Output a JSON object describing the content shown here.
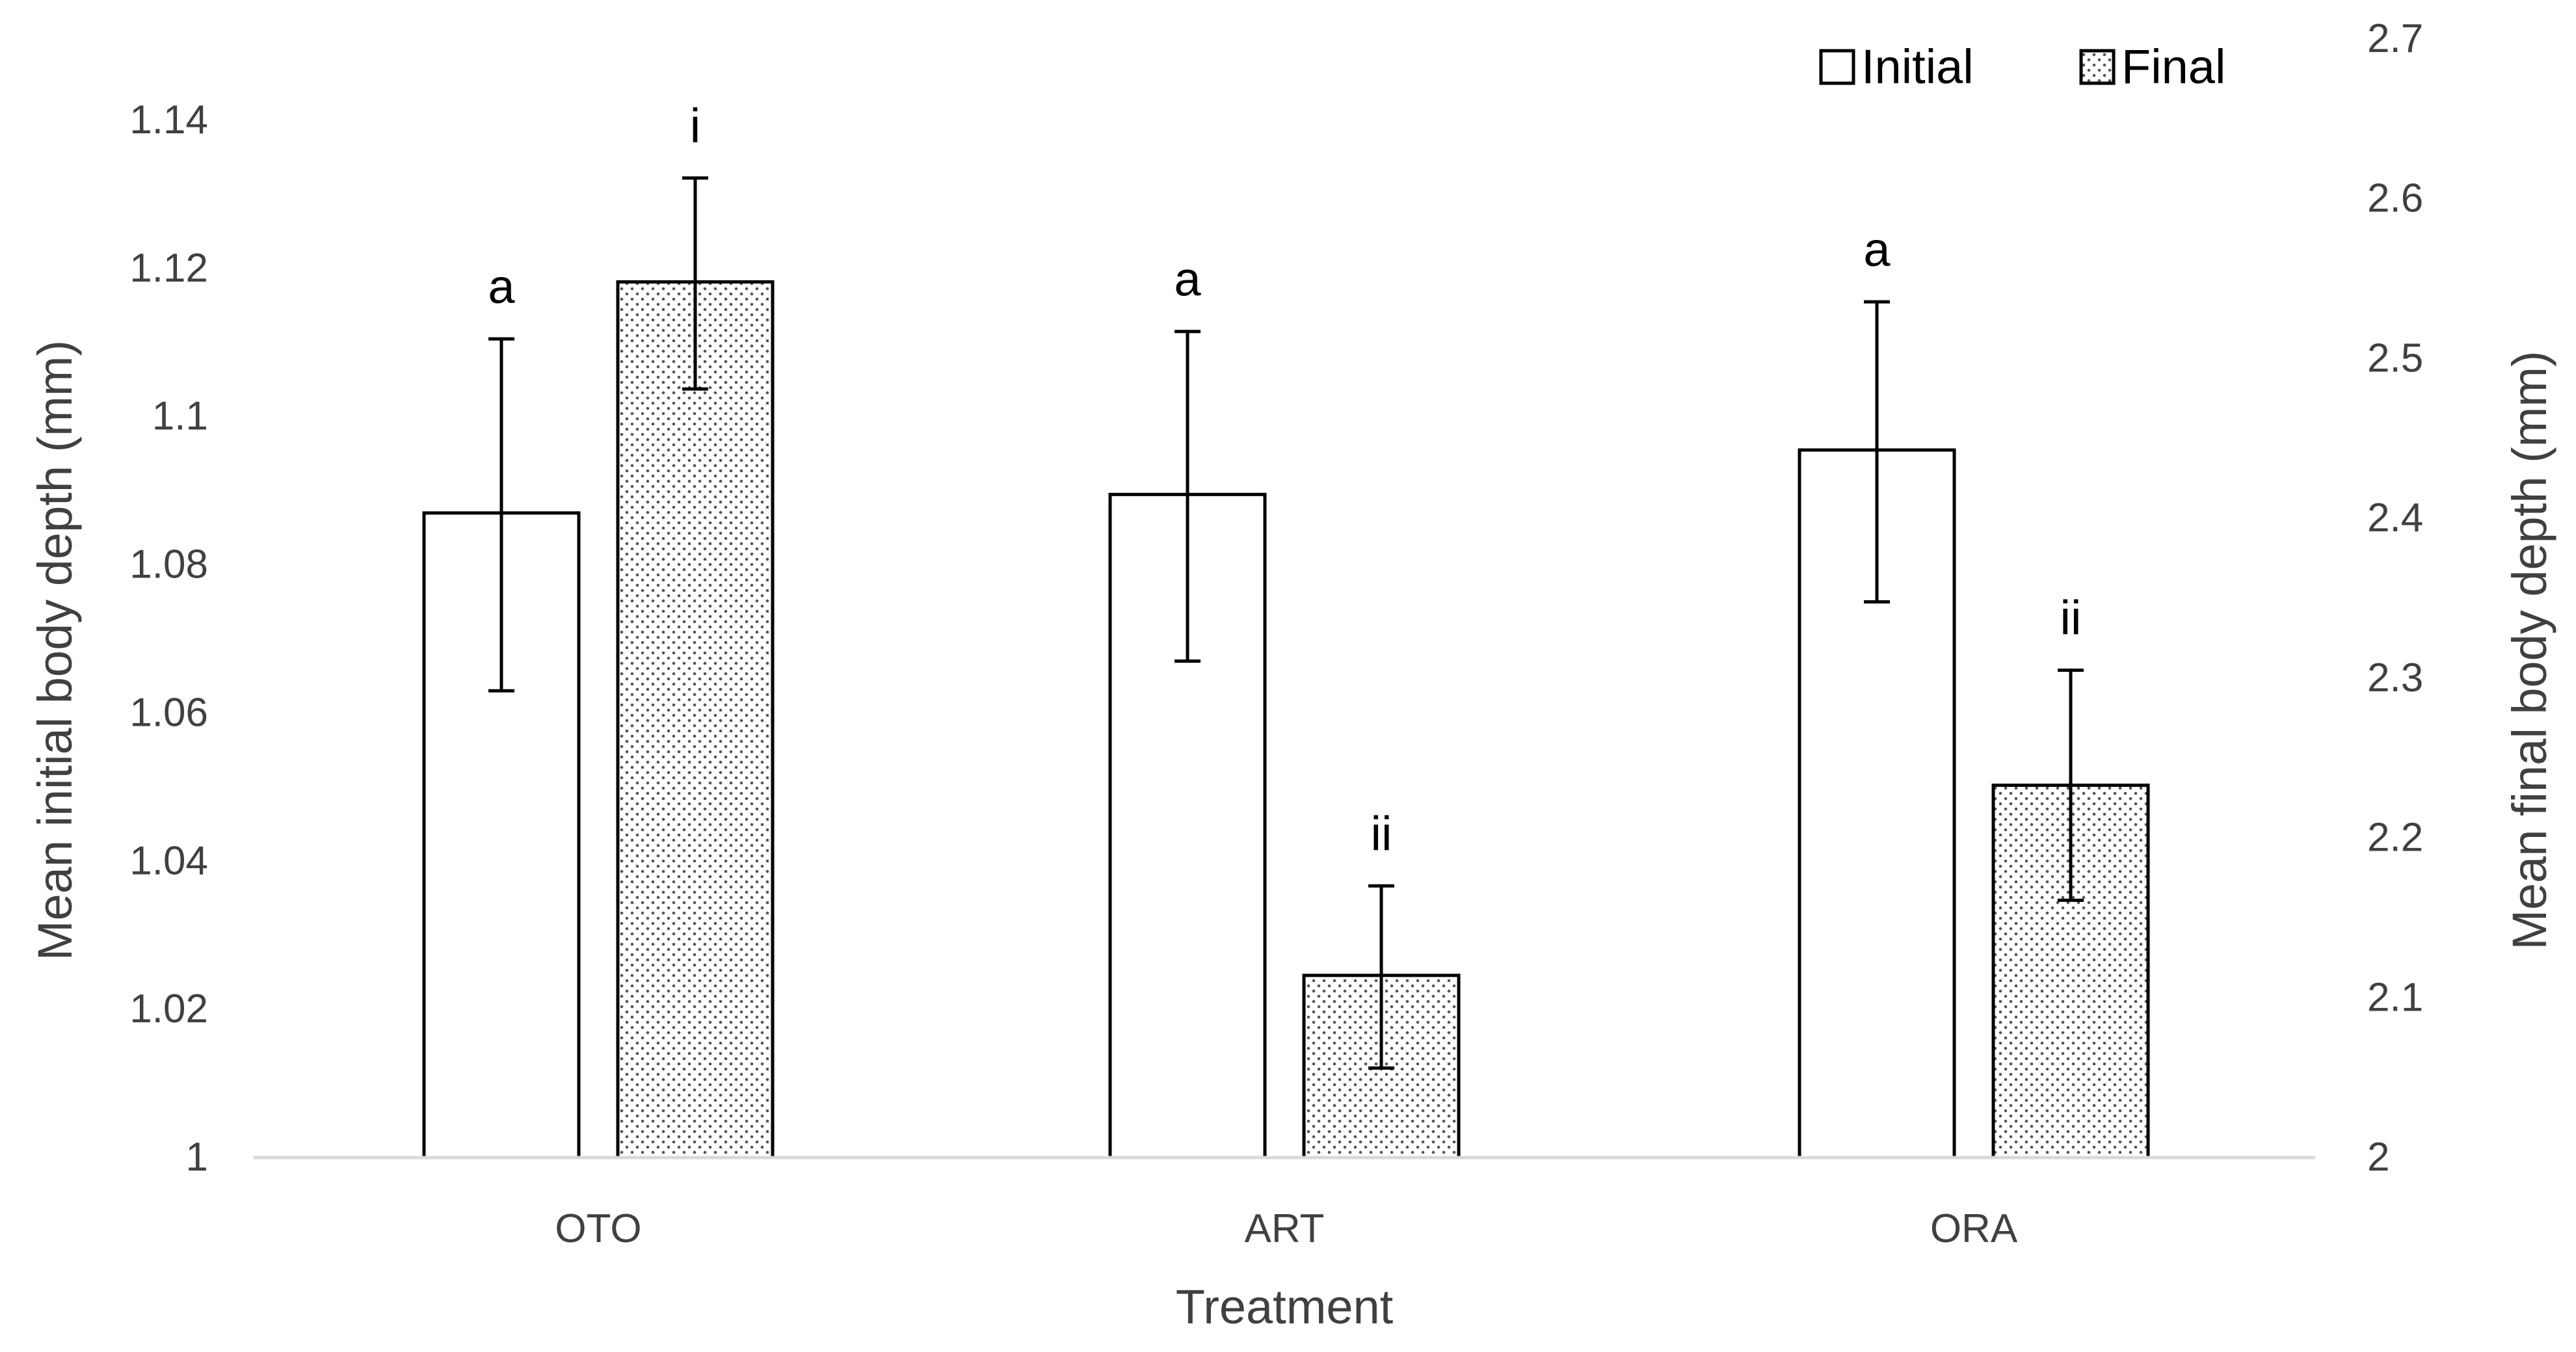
{
  "chart_data": {
    "type": "bar",
    "xlabel": "Treatment",
    "ylabel_left": "Mean initial body depth (mm)",
    "ylabel_right": "Mean final body depth (mm)",
    "categories": [
      "OTO",
      "ART",
      "ORA"
    ],
    "ylim_left": [
      1,
      1.14
    ],
    "yticks_left": [
      1,
      1.02,
      1.04,
      1.06,
      1.08,
      1.1,
      1.12,
      1.14
    ],
    "yticklabels_left": [
      "1",
      "1.02",
      "1.04",
      "1.06",
      "1.08",
      "1.1",
      "1.12",
      "1.14"
    ],
    "ylim_right": [
      2,
      2.7
    ],
    "yticks_right": [
      2,
      2.1,
      2.2,
      2.3,
      2.4,
      2.5,
      2.6,
      2.7
    ],
    "yticklabels_right": [
      "2",
      "2.1",
      "2.2",
      "2.3",
      "2.4",
      "2.5",
      "2.6",
      "2.7"
    ],
    "legend_position": "top-right",
    "grid": false,
    "series": [
      {
        "name": "Initial",
        "axis": "left",
        "pattern": "solid-white",
        "values": [
          1.087,
          1.0895,
          1.0955
        ],
        "error_low": [
          1.063,
          1.067,
          1.075
        ],
        "error_high": [
          1.1105,
          1.1115,
          1.1155
        ],
        "labels": [
          "a",
          "a",
          "a"
        ]
      },
      {
        "name": "Final",
        "axis": "right",
        "pattern": "dotted",
        "values": [
          2.548,
          2.114,
          2.233
        ],
        "error_low": [
          2.481,
          2.056,
          2.161
        ],
        "error_high": [
          2.613,
          2.17,
          2.305
        ],
        "labels": [
          "i",
          "ii",
          "ii"
        ]
      }
    ],
    "colors": {
      "bar_edge": "#000000",
      "bar_fill": "#ffffff",
      "dots": "#555555",
      "axis_line": "#d9d9d9",
      "text": "#404040"
    }
  }
}
